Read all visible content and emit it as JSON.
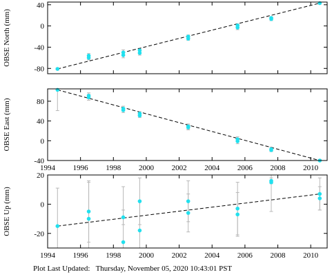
{
  "chart_data": [
    {
      "type": "scatter",
      "ylabel": "OBSE North (mm)",
      "xlim": [
        1994,
        2011
      ],
      "ylim": [
        -90,
        45
      ],
      "xticks": [
        1994,
        1996,
        1998,
        2000,
        2002,
        2004,
        2006,
        2008,
        2010
      ],
      "yticks": [
        -80,
        -40,
        0,
        40
      ],
      "x_tick_labels_shown": false,
      "trend": {
        "x": [
          1994.6,
          2010.55
        ],
        "y": [
          -81,
          43
        ]
      },
      "points": [
        {
          "x": 1994.6,
          "y": -81,
          "err": 2
        },
        {
          "x": 1996.5,
          "y": -60,
          "err": 4
        },
        {
          "x": 1996.5,
          "y": -56,
          "err": 4
        },
        {
          "x": 1998.6,
          "y": -55,
          "err": 5
        },
        {
          "x": 1998.6,
          "y": -50,
          "err": 5
        },
        {
          "x": 1999.6,
          "y": -51,
          "err": 4
        },
        {
          "x": 1999.6,
          "y": -46,
          "err": 4
        },
        {
          "x": 2002.55,
          "y": -24,
          "err": 3
        },
        {
          "x": 2002.55,
          "y": -20,
          "err": 3
        },
        {
          "x": 2005.55,
          "y": -3,
          "err": 4
        },
        {
          "x": 2005.55,
          "y": 1,
          "err": 3
        },
        {
          "x": 2007.6,
          "y": 13,
          "err": 3
        },
        {
          "x": 2007.6,
          "y": 15,
          "err": 2
        },
        {
          "x": 2010.55,
          "y": 43,
          "err": 2
        }
      ]
    },
    {
      "type": "scatter",
      "ylabel": "OBSE East (mm)",
      "xlim": [
        1994,
        2011
      ],
      "ylim": [
        -40,
        105
      ],
      "xticks": [
        1994,
        1996,
        1998,
        2000,
        2002,
        2004,
        2006,
        2008,
        2010
      ],
      "yticks": [
        -40,
        0,
        40,
        80
      ],
      "x_tick_labels_shown": true,
      "trend": {
        "x": [
          1994.6,
          2010.55
        ],
        "y": [
          103,
          -40
        ]
      },
      "points": [
        {
          "x": 1994.6,
          "y": 103,
          "err": 42
        },
        {
          "x": 1996.5,
          "y": 88,
          "err": 6
        },
        {
          "x": 1996.5,
          "y": 91,
          "err": 6
        },
        {
          "x": 1998.6,
          "y": 65,
          "err": 5
        },
        {
          "x": 1998.6,
          "y": 62,
          "err": 5
        },
        {
          "x": 1999.6,
          "y": 55,
          "err": 4
        },
        {
          "x": 1999.6,
          "y": 51,
          "err": 4
        },
        {
          "x": 2002.55,
          "y": 29,
          "err": 5
        },
        {
          "x": 2002.55,
          "y": 27,
          "err": 5
        },
        {
          "x": 2005.55,
          "y": 3,
          "err": 5
        },
        {
          "x": 2005.55,
          "y": -1,
          "err": 5
        },
        {
          "x": 2007.6,
          "y": -17,
          "err": 4
        },
        {
          "x": 2007.6,
          "y": -19,
          "err": 3
        },
        {
          "x": 2010.55,
          "y": -40,
          "err": 2
        }
      ]
    },
    {
      "type": "scatter",
      "ylabel": "OBSE Up (mm)",
      "xlim": [
        1994,
        2011
      ],
      "ylim": [
        -30,
        20
      ],
      "xticks": [
        1994,
        1996,
        1998,
        2000,
        2002,
        2004,
        2006,
        2008,
        2010
      ],
      "yticks": [
        -20,
        0,
        20
      ],
      "x_tick_labels_shown": true,
      "trend": {
        "x": [
          1994.6,
          2010.55
        ],
        "y": [
          -15,
          7
        ]
      },
      "points": [
        {
          "x": 1994.6,
          "y": -15,
          "err": 26
        },
        {
          "x": 1996.5,
          "y": -5,
          "err": 21
        },
        {
          "x": 1996.5,
          "y": -10,
          "err": 25
        },
        {
          "x": 1998.6,
          "y": -9,
          "err": 5
        },
        {
          "x": 1998.6,
          "y": -26,
          "err": 38
        },
        {
          "x": 1999.6,
          "y": 2,
          "err": 16
        },
        {
          "x": 1999.6,
          "y": -18,
          "err": 20
        },
        {
          "x": 2002.55,
          "y": 2,
          "err": 14
        },
        {
          "x": 2002.55,
          "y": -6,
          "err": 13
        },
        {
          "x": 2005.55,
          "y": -3,
          "err": 18
        },
        {
          "x": 2005.55,
          "y": -7,
          "err": 15
        },
        {
          "x": 2007.6,
          "y": 16,
          "err": 2
        },
        {
          "x": 2007.6,
          "y": 15,
          "err": 20
        },
        {
          "x": 2010.55,
          "y": 7,
          "err": 11
        },
        {
          "x": 2010.55,
          "y": 4,
          "err": 8
        }
      ]
    }
  ],
  "footer": {
    "label": "Plot Last Updated:",
    "timestamp": "Thursday, November 05, 2020 10:43:01 PST"
  },
  "colors": {
    "marker": "#22e0ee",
    "errorbar": "#b8b8b8",
    "trend": "#000000",
    "axes": "#000000"
  }
}
